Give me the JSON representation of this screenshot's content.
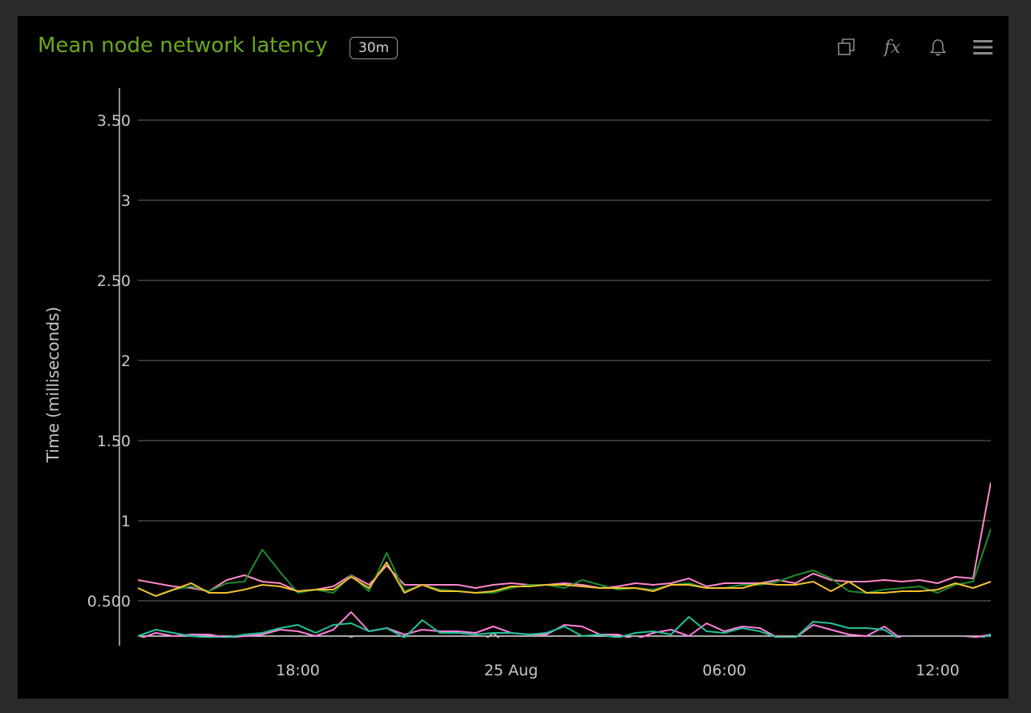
{
  "panel": {
    "title": "Mean node network latency",
    "interval_badge": "30m",
    "toolbar": {
      "duplicate_icon": "duplicate-icon",
      "formula_label": "fx",
      "alert_icon": "bell-icon",
      "menu_icon": "menu-icon"
    }
  },
  "colors": {
    "background": "#000000",
    "frame": "#2a2a2a",
    "title": "#6aa81e",
    "grid": "#555555",
    "axis_text": "#c8c8c8",
    "series": [
      "#f2c12e",
      "#1e8a2e",
      "#ff88cc",
      "#22c29a",
      "#ff80dd",
      "#bbbbbb"
    ]
  },
  "chart_data": {
    "type": "line",
    "ylabel": "Time (milliseconds)",
    "ylim": [
      0.27,
      3.7
    ],
    "yticks": [
      0.5,
      1,
      1.5,
      2,
      2.5,
      3,
      3.5
    ],
    "ytick_labels": [
      "0.500",
      "1",
      "1.50",
      "2",
      "2.50",
      "3",
      "3.50"
    ],
    "x_start": "2023-08-24 13:30",
    "x_end": "2023-08-25 13:30",
    "x_step_minutes": 30,
    "xticks": [
      "2023-08-24 18:00",
      "2023-08-25 00:00",
      "2023-08-25 06:00",
      "2023-08-25 12:00"
    ],
    "xtick_labels": [
      "18:00",
      "25 Aug",
      "06:00",
      "12:00"
    ],
    "grid": true,
    "series": [
      {
        "values": [
          0.58,
          0.53,
          0.57,
          0.61,
          0.55,
          0.55,
          0.57,
          0.6,
          0.59,
          0.56,
          0.57,
          0.57,
          0.65,
          0.58,
          0.74,
          0.55,
          0.6,
          0.56,
          0.56,
          0.55,
          0.56,
          0.59,
          0.59,
          0.6,
          0.6,
          0.59,
          0.58,
          0.58,
          0.58,
          0.56,
          0.6,
          0.6,
          0.58,
          0.58,
          0.58,
          0.61,
          0.6,
          0.6,
          0.62,
          0.56,
          0.62,
          0.55,
          0.55,
          0.56,
          0.56,
          0.57,
          0.61,
          0.58,
          0.62
        ]
      },
      {
        "values": [
          0.58,
          0.53,
          0.57,
          0.59,
          0.56,
          0.61,
          0.62,
          0.82,
          0.68,
          0.55,
          0.57,
          0.55,
          0.66,
          0.56,
          0.8,
          0.56,
          0.6,
          0.57,
          0.56,
          0.55,
          0.55,
          0.58,
          0.6,
          0.6,
          0.58,
          0.63,
          0.6,
          0.57,
          0.58,
          0.57,
          0.6,
          0.61,
          0.58,
          0.58,
          0.6,
          0.6,
          0.62,
          0.66,
          0.69,
          0.64,
          0.56,
          0.55,
          0.57,
          0.58,
          0.59,
          0.55,
          0.6,
          0.62,
          0.95
        ]
      },
      {
        "values": [
          0.63,
          0.61,
          0.59,
          0.58,
          0.56,
          0.63,
          0.66,
          0.62,
          0.61,
          0.56,
          0.57,
          0.59,
          0.66,
          0.6,
          0.72,
          0.6,
          0.6,
          0.6,
          0.6,
          0.58,
          0.6,
          0.61,
          0.6,
          0.6,
          0.61,
          0.6,
          0.58,
          0.59,
          0.61,
          0.6,
          0.61,
          0.64,
          0.59,
          0.61,
          0.61,
          0.61,
          0.63,
          0.61,
          0.67,
          0.63,
          0.62,
          0.62,
          0.63,
          0.62,
          0.63,
          0.61,
          0.65,
          0.64,
          1.24
        ]
      },
      {
        "values": [
          0.28,
          0.32,
          0.3,
          0.28,
          0.27,
          0.27,
          0.29,
          0.3,
          0.33,
          0.35,
          0.3,
          0.35,
          0.36,
          0.31,
          0.33,
          0.27,
          0.38,
          0.3,
          0.3,
          0.29,
          0.3,
          0.3,
          0.29,
          0.3,
          0.34,
          0.28,
          0.29,
          0.27,
          0.3,
          0.31,
          0.29,
          0.4,
          0.31,
          0.3,
          0.33,
          0.31,
          0.27,
          0.27,
          0.37,
          0.36,
          0.33,
          0.33,
          0.32,
          0.25,
          0.25,
          0.25,
          0.25,
          0.25,
          0.29
        ]
      },
      {
        "values": [
          0.26,
          0.3,
          0.28,
          0.29,
          0.29,
          0.27,
          0.28,
          0.29,
          0.32,
          0.31,
          0.28,
          0.32,
          0.43,
          0.31,
          0.33,
          0.29,
          0.32,
          0.31,
          0.31,
          0.3,
          0.34,
          0.3,
          0.29,
          0.29,
          0.35,
          0.34,
          0.29,
          0.29,
          0.26,
          0.3,
          0.32,
          0.28,
          0.36,
          0.31,
          0.34,
          0.33,
          0.27,
          0.27,
          0.35,
          0.32,
          0.29,
          0.28,
          0.34,
          0.26,
          0.26,
          0.26,
          0.26,
          0.27,
          0.29
        ]
      },
      {
        "values": [
          0.2,
          0.23,
          0.22,
          0.21,
          0.22,
          0.2,
          0.21,
          0.22,
          0.24,
          0.23,
          0.22,
          0.24,
          0.27,
          0.24,
          0.25,
          0.21,
          0.23,
          0.22,
          0.22,
          0.21,
          0.3,
          0.2,
          0.2,
          0.2,
          0.25,
          0.23,
          0.21,
          0.22,
          0.2,
          0.21,
          0.23,
          0.2,
          0.26,
          0.23,
          0.22,
          0.25,
          0.21,
          0.21,
          0.25,
          0.24,
          0.23,
          0.22,
          0.23,
          0.18,
          0.19,
          0.18,
          0.18,
          0.19,
          0.22
        ]
      }
    ]
  }
}
